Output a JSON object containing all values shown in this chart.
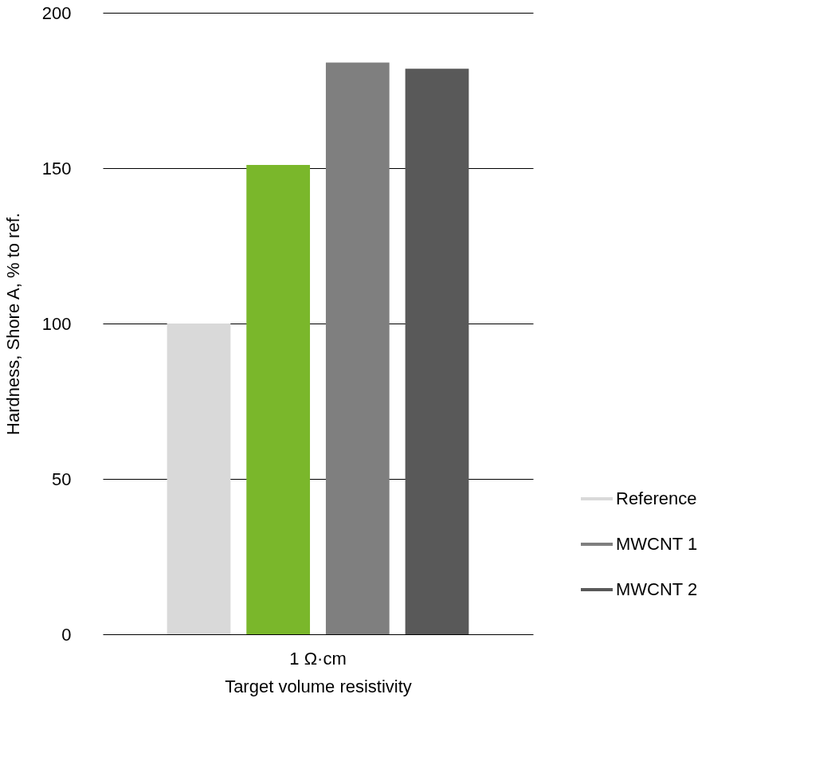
{
  "chart_data": {
    "type": "bar",
    "xlabel": "Target volume resistivity",
    "ylabel": "Hardness, Shore A, % to ref.",
    "categories": [
      "1 Ω·cm"
    ],
    "series": [
      {
        "name": "Reference",
        "color": "#d9d9d9",
        "values": [
          100
        ]
      },
      {
        "color": "#7ab72b",
        "values": [
          151
        ]
      },
      {
        "name": "MWCNT 1",
        "color": "#7f7f7f",
        "values": [
          184
        ]
      },
      {
        "name": "MWCNT 2",
        "color": "#595959",
        "values": [
          182
        ]
      }
    ],
    "ylim": [
      0,
      200
    ],
    "yticks": [
      0,
      50,
      100,
      150,
      200
    ],
    "grid": "y",
    "legend": "bottom right"
  }
}
